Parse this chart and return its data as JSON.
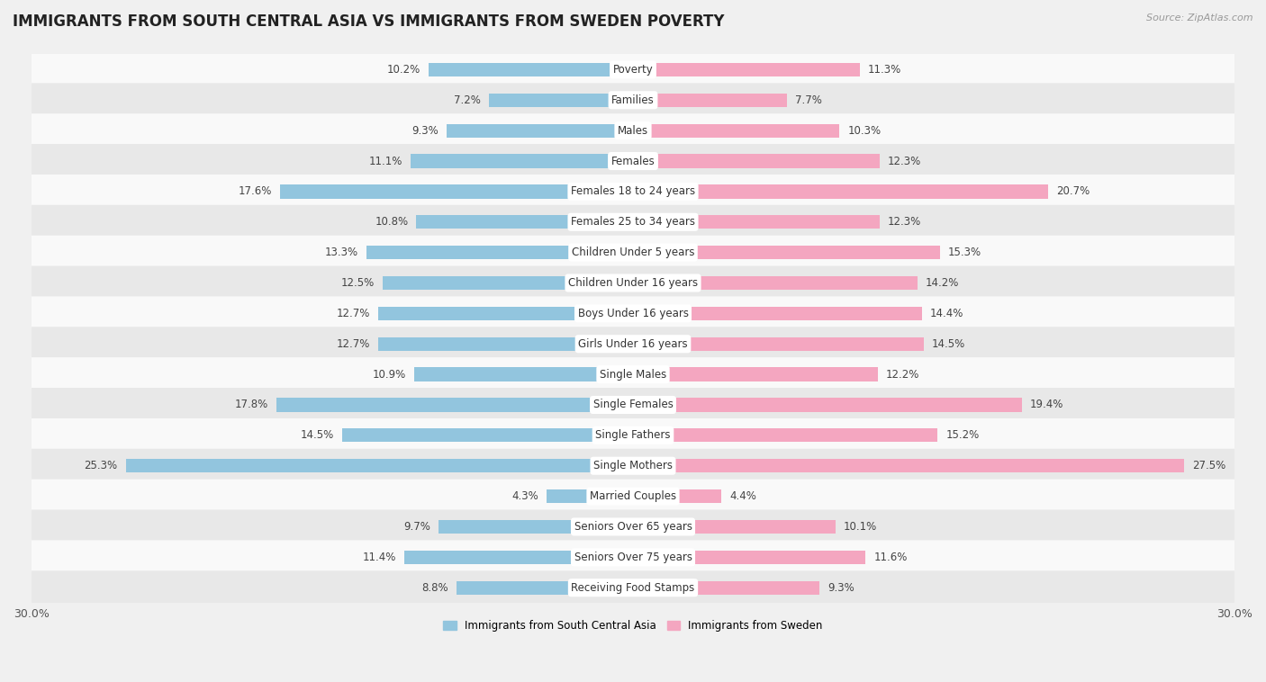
{
  "title": "IMMIGRANTS FROM SOUTH CENTRAL ASIA VS IMMIGRANTS FROM SWEDEN POVERTY",
  "source": "Source: ZipAtlas.com",
  "categories": [
    "Poverty",
    "Families",
    "Males",
    "Females",
    "Females 18 to 24 years",
    "Females 25 to 34 years",
    "Children Under 5 years",
    "Children Under 16 years",
    "Boys Under 16 years",
    "Girls Under 16 years",
    "Single Males",
    "Single Females",
    "Single Fathers",
    "Single Mothers",
    "Married Couples",
    "Seniors Over 65 years",
    "Seniors Over 75 years",
    "Receiving Food Stamps"
  ],
  "left_values": [
    10.2,
    7.2,
    9.3,
    11.1,
    17.6,
    10.8,
    13.3,
    12.5,
    12.7,
    12.7,
    10.9,
    17.8,
    14.5,
    25.3,
    4.3,
    9.7,
    11.4,
    8.8
  ],
  "right_values": [
    11.3,
    7.7,
    10.3,
    12.3,
    20.7,
    12.3,
    15.3,
    14.2,
    14.4,
    14.5,
    12.2,
    19.4,
    15.2,
    27.5,
    4.4,
    10.1,
    11.6,
    9.3
  ],
  "left_color": "#92c5de",
  "right_color": "#f4a6c0",
  "axis_limit": 30.0,
  "legend_left": "Immigrants from South Central Asia",
  "legend_right": "Immigrants from Sweden",
  "background_color": "#f0f0f0",
  "row_color_light": "#f9f9f9",
  "row_color_dark": "#e8e8e8",
  "title_fontsize": 12,
  "label_fontsize": 8.5,
  "value_fontsize": 8.5,
  "axis_label_fontsize": 9
}
